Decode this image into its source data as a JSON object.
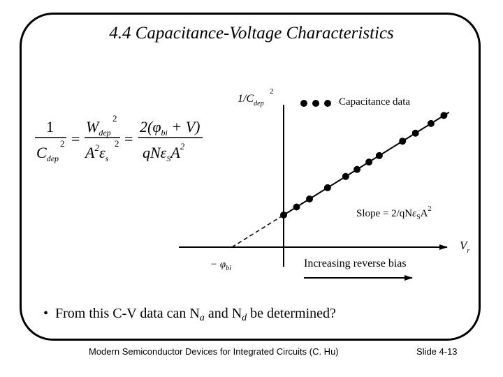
{
  "slide": {
    "title": "4.4  Capacitance-Voltage Characteristics",
    "bullet": "From this C-V data can N",
    "bullet_parts": {
      "a": "a",
      "and": " and N",
      "d": "d",
      "tail": " be determined?"
    },
    "footer_left": "Modern Semiconductor Devices for Integrated Circuits (C. Hu)",
    "footer_right": "Slide 4-13"
  },
  "equation": {
    "lhs_num": "1",
    "lhs_den": "C",
    "lhs_den_sub": "dep",
    "lhs_den_sup": "2",
    "eq1": "=",
    "mid_num": "W",
    "mid_num_sub": "dep",
    "mid_num_sup": "2",
    "mid_den": "A",
    "mid_den_sup": "2",
    "mid_den_eps": "ε",
    "mid_den_eps_sub": "s",
    "mid_den_eps_sup": "2",
    "eq2": "=",
    "rhs_num": "2(φ",
    "rhs_num_sub": "bi",
    "rhs_num_tail": " + V)",
    "rhs_den": "qNε",
    "rhs_den_sub": "S",
    "rhs_den_tail": "A",
    "rhs_den_sup": "2"
  },
  "chart_data": {
    "type": "scatter",
    "y_axis_label": "1/C",
    "y_axis_label_sub": "dep",
    "y_axis_label_sup": "2",
    "x_axis_label": "V",
    "x_axis_label_sub": "r",
    "legend": "Capacitance data",
    "slope_label": "Slope = 2/qN",
    "slope_label_sub": "S",
    "slope_label_tail": "A",
    "slope_label_sup": "2",
    "slope_label_eps": "ε",
    "intercept_label": "− φ",
    "intercept_label_sub": "bi",
    "arrow_label": "Increasing reverse bias",
    "x_intercept": -1,
    "points": [
      {
        "x": 0.0,
        "y": 1.0
      },
      {
        "x": 0.25,
        "y": 1.25
      },
      {
        "x": 0.5,
        "y": 1.5
      },
      {
        "x": 0.85,
        "y": 1.85
      },
      {
        "x": 1.2,
        "y": 2.2
      },
      {
        "x": 1.42,
        "y": 2.42
      },
      {
        "x": 1.65,
        "y": 2.65
      },
      {
        "x": 1.85,
        "y": 2.85
      },
      {
        "x": 2.3,
        "y": 3.3
      },
      {
        "x": 2.55,
        "y": 3.55
      },
      {
        "x": 2.85,
        "y": 3.85
      },
      {
        "x": 3.1,
        "y": 4.1
      }
    ],
    "fit_line": {
      "x_start": 0.0,
      "x_end": 3.2
    },
    "extrapolation": {
      "x_start": -1.0,
      "x_end": 0.0
    },
    "xlim": [
      -2.1,
      3.5
    ],
    "ylim": [
      0,
      5.5
    ],
    "grid": false
  }
}
